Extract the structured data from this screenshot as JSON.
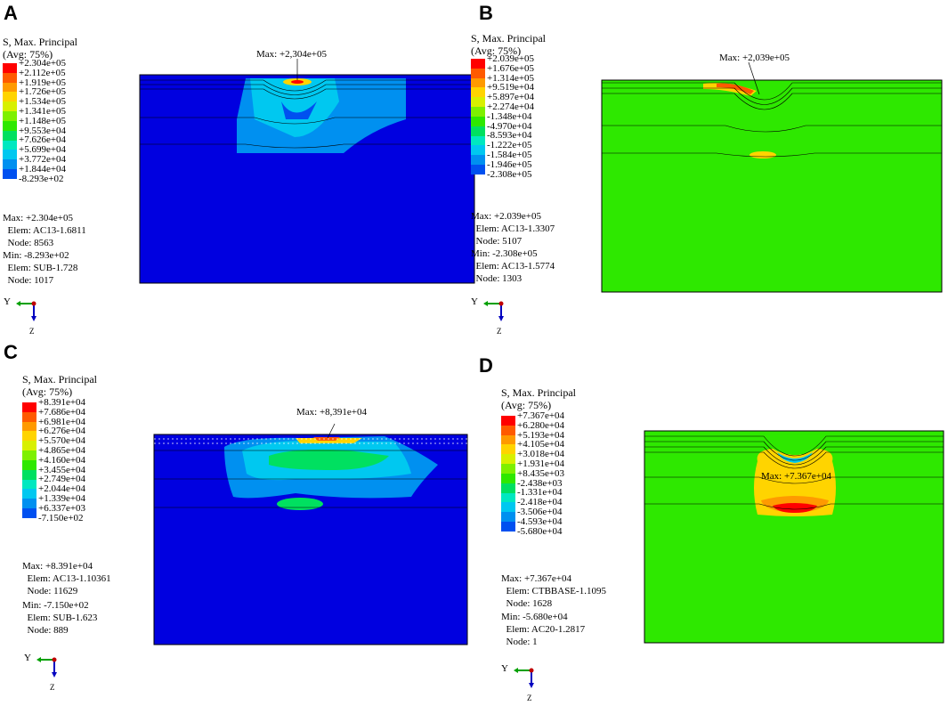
{
  "colormap": [
    "#ff0000",
    "#ff5a00",
    "#ff9a00",
    "#ffd400",
    "#d8f000",
    "#7ef000",
    "#2ee800",
    "#00e060",
    "#00e8c0",
    "#00c8f0",
    "#0090f0",
    "#0050f0",
    "#0000e0"
  ],
  "panels": [
    {
      "letter": "A",
      "legend_title": [
        "S, Max. Principal",
        "(Avg: 75%)"
      ],
      "legend_values": [
        "+2.304e+05",
        "+2.112e+05",
        "+1.919e+05",
        "+1.726e+05",
        "+1.534e+05",
        "+1.341e+05",
        "+1.148e+05",
        "+9.553e+04",
        "+7.626e+04",
        "+5.699e+04",
        "+3.772e+04",
        "+1.844e+04",
        "-8.293e+02"
      ],
      "max_lines": [
        "Max: +2.304e+05",
        "  Elem: AC13-1.6811",
        "  Node: 8563"
      ],
      "min_lines": [
        "Min: -8.293e+02",
        "  Elem: SUB-1.728",
        "  Node: 1017"
      ],
      "max_callout": "Max: +2,304e+05",
      "triad": {
        "y": "Y",
        "z": "Z"
      }
    },
    {
      "letter": "B",
      "legend_title": [
        "S, Max. Principal",
        "(Avg: 75%)"
      ],
      "legend_values": [
        "+2.039e+05",
        "+1.676e+05",
        "+1.314e+05",
        "+9.519e+04",
        "+5.897e+04",
        "+2.274e+04",
        "-1.348e+04",
        "-4.970e+04",
        "-8.593e+04",
        "-1.222e+05",
        "-1.584e+05",
        "-1.946e+05",
        "-2.308e+05"
      ],
      "max_lines": [
        "Max: +2.039e+05",
        "  Elem: AC13-1.3307",
        "  Node: 5107"
      ],
      "min_lines": [
        "Min: -2.308e+05",
        "  Elem: AC13-1.5774",
        "  Node: 1303"
      ],
      "max_callout": "Max: +2,039e+05",
      "triad": {
        "y": "Y",
        "z": "Z"
      }
    },
    {
      "letter": "C",
      "legend_title": [
        "S, Max. Principal",
        "(Avg: 75%)"
      ],
      "legend_values": [
        "+8.391e+04",
        "+7.686e+04",
        "+6.981e+04",
        "+6.276e+04",
        "+5.570e+04",
        "+4.865e+04",
        "+4.160e+04",
        "+3.455e+04",
        "+2.749e+04",
        "+2.044e+04",
        "+1.339e+04",
        "+6.337e+03",
        "-7.150e+02"
      ],
      "max_lines": [
        "Max: +8.391e+04",
        "  Elem: AC13-1.10361",
        "  Node: 11629"
      ],
      "min_lines": [
        "Min: -7.150e+02",
        "  Elem: SUB-1.623",
        "  Node: 889"
      ],
      "max_callout": "Max: +8,391e+04",
      "triad": {
        "y": "Y",
        "z": "Z"
      }
    },
    {
      "letter": "D",
      "legend_title": [
        "S, Max. Principal",
        "(Avg: 75%)"
      ],
      "legend_values": [
        "+7.367e+04",
        "+6.280e+04",
        "+5.193e+04",
        "+4.105e+04",
        "+3.018e+04",
        "+1.931e+04",
        "+8.435e+03",
        "-2.438e+03",
        "-1.331e+04",
        "-2.418e+04",
        "-3.506e+04",
        "-4.593e+04",
        "-5.680e+04"
      ],
      "max_lines": [
        "Max: +7.367e+04",
        "  Elem: CTBBASE-1.1095",
        "  Node: 1628"
      ],
      "min_lines": [
        "Min: -5.680e+04",
        "  Elem: AC20-1.2817",
        "  Node: 1"
      ],
      "max_callout": "Max: +7.367e+04",
      "triad": {
        "y": "Y",
        "z": "Z"
      }
    }
  ]
}
